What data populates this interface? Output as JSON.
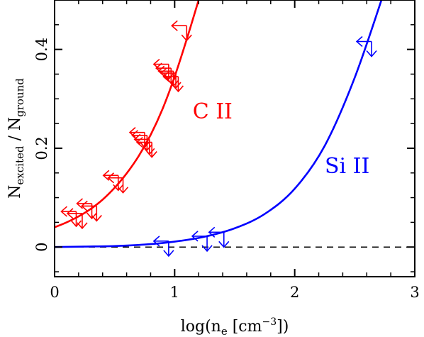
{
  "chart_data": {
    "type": "scatter",
    "xlabel": {
      "base": "log(n",
      "sub": "e",
      "mid": " [cm",
      "sup": "−3",
      "end": "])"
    },
    "ylabel": {
      "n1": "N",
      "n1_sub": "excited",
      "sep": " / ",
      "n2": "N",
      "n2_sub": "ground"
    },
    "xlim": [
      0,
      3
    ],
    "ylim": [
      -0.06,
      0.5
    ],
    "x_ticks": [
      0,
      1,
      2,
      3
    ],
    "x_tick_labels": [
      "0",
      "1",
      "2",
      "3"
    ],
    "y_ticks": [
      0,
      0.2,
      0.4
    ],
    "y_tick_labels": [
      "0",
      "0.2",
      "0.4"
    ],
    "reference_line": {
      "y": 0,
      "style": "dashed",
      "color": "#000000"
    },
    "series": [
      {
        "label": "C  II",
        "color": "#ff0000",
        "label_position": {
          "x": 1.15,
          "y": 0.26
        },
        "curve": {
          "x": [
            0,
            0.1,
            0.2,
            0.3,
            0.4,
            0.5,
            0.6,
            0.7,
            0.8,
            0.9,
            1.0,
            1.1,
            1.2
          ],
          "y": [
            0.04,
            0.05,
            0.062,
            0.077,
            0.096,
            0.12,
            0.149,
            0.184,
            0.227,
            0.28,
            0.345,
            0.42,
            0.5
          ]
        },
        "upper_limits": [
          {
            "x": 0.18,
            "y": 0.072
          },
          {
            "x": 0.23,
            "y": 0.068
          },
          {
            "x": 0.31,
            "y": 0.088
          },
          {
            "x": 0.35,
            "y": 0.083
          },
          {
            "x": 0.53,
            "y": 0.145
          },
          {
            "x": 0.57,
            "y": 0.14
          },
          {
            "x": 0.75,
            "y": 0.232
          },
          {
            "x": 0.77,
            "y": 0.226
          },
          {
            "x": 0.79,
            "y": 0.218
          },
          {
            "x": 0.81,
            "y": 0.212
          },
          {
            "x": 0.95,
            "y": 0.37
          },
          {
            "x": 0.97,
            "y": 0.362
          },
          {
            "x": 0.99,
            "y": 0.356
          },
          {
            "x": 1.01,
            "y": 0.352
          },
          {
            "x": 1.03,
            "y": 0.345
          },
          {
            "x": 1.1,
            "y": 0.448
          }
        ]
      },
      {
        "label": "Si  II",
        "color": "#0000ff",
        "label_position": {
          "x": 2.25,
          "y": 0.15
        },
        "curve": {
          "x": [
            0,
            0.25,
            0.5,
            0.75,
            1.0,
            1.25,
            1.5,
            1.75,
            2.0,
            2.25,
            2.5,
            2.75
          ],
          "y": [
            0.0,
            0.001,
            0.002,
            0.005,
            0.011,
            0.021,
            0.038,
            0.067,
            0.118,
            0.205,
            0.343,
            0.52
          ]
        },
        "upper_limits": [
          {
            "x": 0.95,
            "y": 0.012
          },
          {
            "x": 1.27,
            "y": 0.022
          },
          {
            "x": 1.41,
            "y": 0.03
          },
          {
            "x": 2.64,
            "y": 0.416
          }
        ]
      }
    ]
  }
}
